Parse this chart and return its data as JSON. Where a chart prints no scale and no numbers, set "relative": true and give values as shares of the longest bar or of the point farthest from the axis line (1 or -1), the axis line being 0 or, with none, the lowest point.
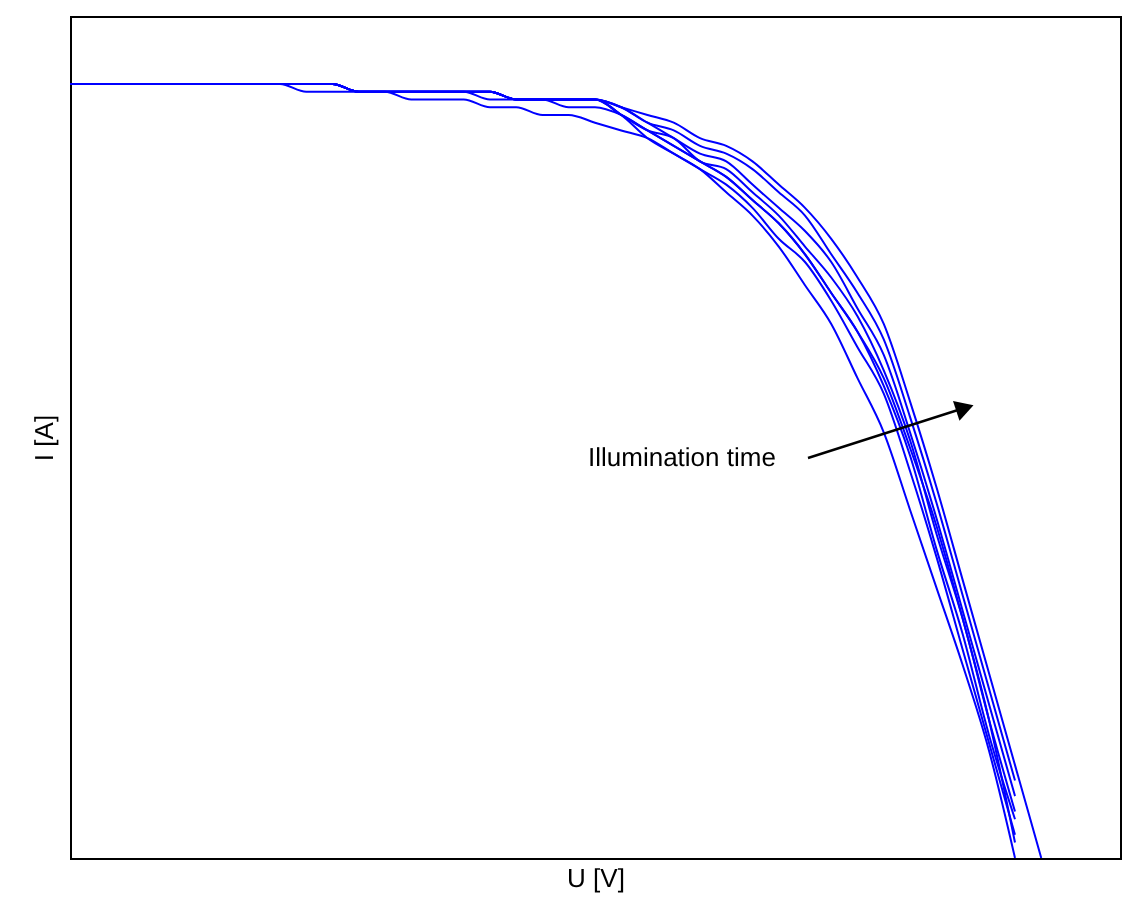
{
  "chart_data": {
    "type": "line",
    "relative": true,
    "xlabel": "U [V]",
    "ylabel": "I [A]",
    "marker": "none",
    "line_style": "solid",
    "tick_labels": false,
    "annotations": [
      "Illumination time"
    ],
    "categories": [
      null,
      null,
      null,
      null,
      null,
      null,
      null,
      null,
      null,
      null,
      null,
      null,
      null,
      null,
      null,
      null,
      null,
      null,
      null,
      null,
      null,
      null,
      null,
      null,
      null,
      null,
      null,
      null,
      null,
      null,
      null,
      null,
      null,
      null,
      null,
      null,
      null,
      null,
      null,
      null,
      null
    ],
    "series": [
      {
        "color": "#0000ff",
        "values": [
          1.0,
          1.0,
          1.0,
          1.0,
          1.0,
          1.0,
          1.0,
          1.0,
          1.0,
          0.99,
          0.99,
          0.99,
          0.99,
          0.98,
          0.98,
          0.98,
          0.97,
          0.97,
          0.96,
          0.96,
          0.95,
          0.94,
          0.93,
          0.91,
          0.89,
          0.86,
          0.83,
          0.79,
          0.74,
          0.69,
          0.62,
          0.55,
          0.45,
          0.35,
          0.25,
          0.14,
          0.0,
          null,
          null,
          null,
          null
        ]
      },
      {
        "color": "#0000ff",
        "values": [
          1.0,
          1.0,
          1.0,
          1.0,
          1.0,
          1.0,
          1.0,
          1.0,
          1.0,
          1.0,
          1.0,
          0.99,
          0.99,
          0.99,
          0.99,
          0.99,
          0.98,
          0.98,
          0.98,
          0.97,
          0.97,
          0.96,
          0.94,
          0.92,
          0.9,
          0.88,
          0.85,
          0.82,
          0.78,
          0.73,
          0.68,
          0.62,
          0.53,
          0.43,
          0.31,
          0.18,
          0.02,
          null,
          null,
          null,
          null
        ]
      },
      {
        "color": "#0000ff",
        "values": [
          1.0,
          1.0,
          1.0,
          1.0,
          1.0,
          1.0,
          1.0,
          1.0,
          1.0,
          1.0,
          1.0,
          0.99,
          0.99,
          0.99,
          0.99,
          0.99,
          0.99,
          0.98,
          0.98,
          0.98,
          0.98,
          0.96,
          0.93,
          0.91,
          0.89,
          0.87,
          0.84,
          0.8,
          0.77,
          0.72,
          0.66,
          0.6,
          0.5,
          0.39,
          0.27,
          0.15,
          0.03,
          null,
          null,
          null,
          null
        ]
      },
      {
        "color": "#0000ff",
        "values": [
          1.0,
          1.0,
          1.0,
          1.0,
          1.0,
          1.0,
          1.0,
          1.0,
          1.0,
          1.0,
          1.0,
          0.99,
          0.99,
          0.99,
          0.99,
          0.99,
          0.99,
          0.98,
          0.98,
          0.98,
          0.98,
          0.96,
          0.94,
          0.92,
          0.9,
          0.88,
          0.85,
          0.82,
          0.78,
          0.73,
          0.68,
          0.61,
          0.52,
          0.4,
          0.29,
          0.16,
          0.05,
          null,
          null,
          null,
          null
        ]
      },
      {
        "color": "#0000ff",
        "values": [
          1.0,
          1.0,
          1.0,
          1.0,
          1.0,
          1.0,
          1.0,
          1.0,
          1.0,
          1.0,
          1.0,
          0.99,
          0.99,
          0.99,
          0.99,
          0.99,
          0.99,
          0.98,
          0.98,
          0.98,
          0.98,
          0.96,
          0.94,
          0.93,
          0.9,
          0.89,
          0.86,
          0.83,
          0.79,
          0.75,
          0.7,
          0.63,
          0.54,
          0.42,
          0.31,
          0.18,
          0.06,
          null,
          null,
          null,
          null
        ]
      },
      {
        "color": "#0000ff",
        "values": [
          1.0,
          1.0,
          1.0,
          1.0,
          1.0,
          1.0,
          1.0,
          1.0,
          1.0,
          1.0,
          1.0,
          0.99,
          0.99,
          0.99,
          0.99,
          0.99,
          0.99,
          0.98,
          0.98,
          0.98,
          0.98,
          0.97,
          0.95,
          0.93,
          0.91,
          0.9,
          0.87,
          0.84,
          0.81,
          0.77,
          0.71,
          0.65,
          0.55,
          0.44,
          0.32,
          0.2,
          0.08,
          null,
          null,
          null,
          null
        ]
      },
      {
        "color": "#0000ff",
        "values": [
          1.0,
          1.0,
          1.0,
          1.0,
          1.0,
          1.0,
          1.0,
          1.0,
          1.0,
          1.0,
          1.0,
          0.99,
          0.99,
          0.99,
          0.99,
          0.99,
          0.99,
          0.98,
          0.98,
          0.98,
          0.98,
          0.97,
          0.95,
          0.94,
          0.92,
          0.91,
          0.89,
          0.86,
          0.83,
          0.78,
          0.73,
          0.67,
          0.57,
          0.46,
          0.34,
          0.22,
          0.1,
          null,
          null,
          null,
          null
        ]
      },
      {
        "color": "#0000ff",
        "values": [
          1.0,
          1.0,
          1.0,
          1.0,
          1.0,
          1.0,
          1.0,
          1.0,
          1.0,
          1.0,
          1.0,
          0.99,
          0.99,
          0.99,
          0.99,
          0.99,
          0.99,
          0.98,
          0.98,
          0.98,
          0.98,
          0.97,
          0.96,
          0.95,
          0.93,
          0.92,
          0.9,
          0.87,
          0.84,
          0.8,
          0.75,
          0.69,
          0.59,
          0.48,
          0.36,
          0.24,
          0.12,
          0.0,
          null,
          null,
          null
        ]
      }
    ]
  }
}
